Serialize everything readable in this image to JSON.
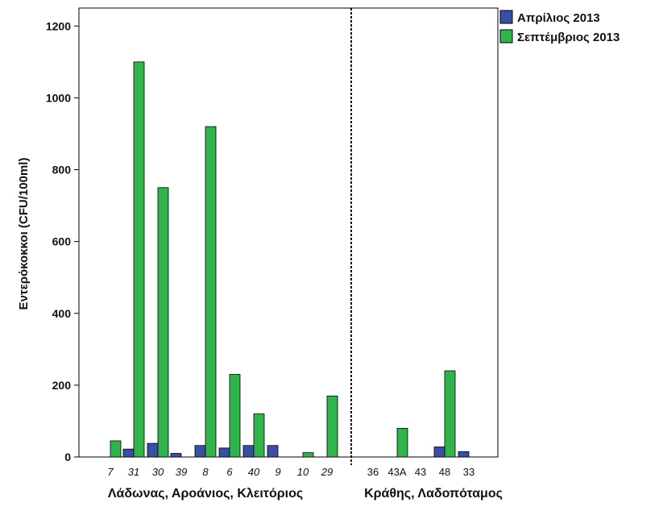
{
  "chart_data": {
    "type": "bar",
    "ylabel": "Εντερόκοκκοι (CFU/100ml)",
    "xlabel": "",
    "ylim": [
      0,
      1250
    ],
    "yticks": [
      0,
      200,
      400,
      600,
      800,
      1000,
      1200
    ],
    "categories": [
      "7",
      "31",
      "30",
      "39",
      "8",
      "6",
      "40",
      "9",
      "10",
      "29",
      "36",
      "43A",
      "43",
      "48",
      "33"
    ],
    "italic_categories": [
      "7",
      "31",
      "30",
      "39",
      "8",
      "6",
      "40",
      "9",
      "10",
      "29"
    ],
    "groups": [
      {
        "label": "Λάδωνας, Αροάνιος, Κλειτόριος",
        "categories": [
          "7",
          "31",
          "30",
          "39",
          "8",
          "6",
          "40",
          "9",
          "10",
          "29"
        ]
      },
      {
        "label": "Κράθης, Λαδοπόταμος",
        "categories": [
          "36",
          "43A",
          "43",
          "48",
          "33"
        ]
      }
    ],
    "series": [
      {
        "name": "Απρίλιος 2013",
        "color": "#3a4fa3",
        "values": [
          0,
          22,
          38,
          10,
          32,
          25,
          32,
          32,
          0,
          0,
          0,
          0,
          0,
          28,
          15
        ]
      },
      {
        "name": "Σεπτέμβριος 2013",
        "color": "#31b44b",
        "values": [
          45,
          1100,
          750,
          0,
          920,
          230,
          120,
          0,
          12,
          170,
          0,
          80,
          0,
          240,
          0
        ]
      }
    ],
    "legend": "top-right",
    "grid": false
  }
}
